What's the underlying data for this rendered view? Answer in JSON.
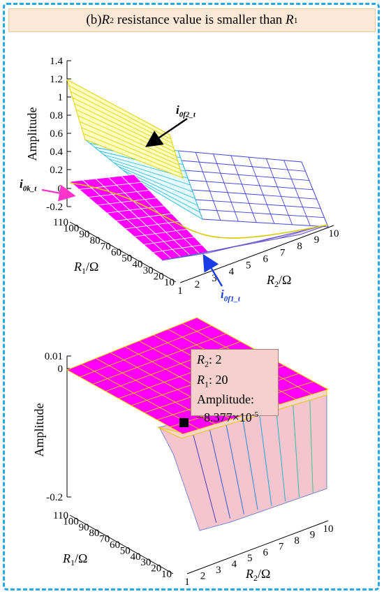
{
  "header": {
    "prefix": "(b) ",
    "r2": "R",
    "r2_sub": "2",
    "middle": " resistance value is smaller than ",
    "r1": "R",
    "r1_sub": "1"
  },
  "colors": {
    "frame": "#28a8e6",
    "header_bg": "#fbe8d6",
    "surface_i0k": "#ff00ff",
    "surface_i0f2_face": "#ffffc0",
    "surface_i0f1": "#f4c4cf",
    "mesh_white": "#ffffff",
    "arrow_i0f2": "#000000",
    "arrow_i0k": "#ff33cc",
    "arrow_i0f1": "#1a3ce6"
  },
  "chart_data": [
    {
      "type": "surface",
      "zlabel": "Amplitude",
      "xlabel_base": "R",
      "xlabel_sub": "2",
      "xlabel_unit": "/Ω",
      "ylabel_base": "R",
      "ylabel_sub": "1",
      "ylabel_unit": "/Ω",
      "x_ticks": [
        "1",
        "2",
        "3",
        "4",
        "5",
        "6",
        "7",
        "8",
        "9",
        "10"
      ],
      "y_ticks": [
        "10",
        "20",
        "30",
        "40",
        "50",
        "60",
        "70",
        "80",
        "90",
        "100",
        "110"
      ],
      "z_ticks": [
        "1.4",
        "1.2",
        "1",
        "0.8",
        "0.6",
        "0.4",
        "0.2",
        "0",
        "-0.2"
      ],
      "zlim": [
        -0.2,
        1.4
      ],
      "annotations": [
        {
          "base": "i",
          "sub": "0f2_t"
        },
        {
          "base": "i",
          "sub": "0k_t"
        },
        {
          "base": "i",
          "sub": "0f1_t"
        }
      ],
      "series": [
        {
          "name": "i0f2_t",
          "description": "yellow surface, ~1.2 at R2=1 decreasing to ~0 near R2=10"
        },
        {
          "name": "i0k_t",
          "value": 0
        },
        {
          "name": "i0f1_t",
          "value": 0
        }
      ]
    },
    {
      "type": "surface",
      "zlabel": "Amplitude",
      "xlabel_base": "R",
      "xlabel_sub": "2",
      "xlabel_unit": "/Ω",
      "ylabel_base": "R",
      "ylabel_sub": "1",
      "ylabel_unit": "/Ω",
      "x_ticks": [
        "1",
        "2",
        "3",
        "4",
        "5",
        "6",
        "7",
        "8",
        "9",
        "10"
      ],
      "y_ticks": [
        "10",
        "20",
        "30",
        "40",
        "50",
        "60",
        "70",
        "80",
        "90",
        "100",
        "110"
      ],
      "z_ticks": [
        "0.01",
        "0",
        "-0.2"
      ],
      "zlim": [
        -0.2,
        0.01
      ],
      "datatip": {
        "r2_label": "R",
        "r2_sub": "2",
        "r2_value": ": 2",
        "r1_label": "R",
        "r1_sub": "1",
        "r1_value": ": 20",
        "amp_label": "Amplitude:",
        "amp_value": "−8.377×10",
        "amp_exp": "-5"
      }
    }
  ]
}
